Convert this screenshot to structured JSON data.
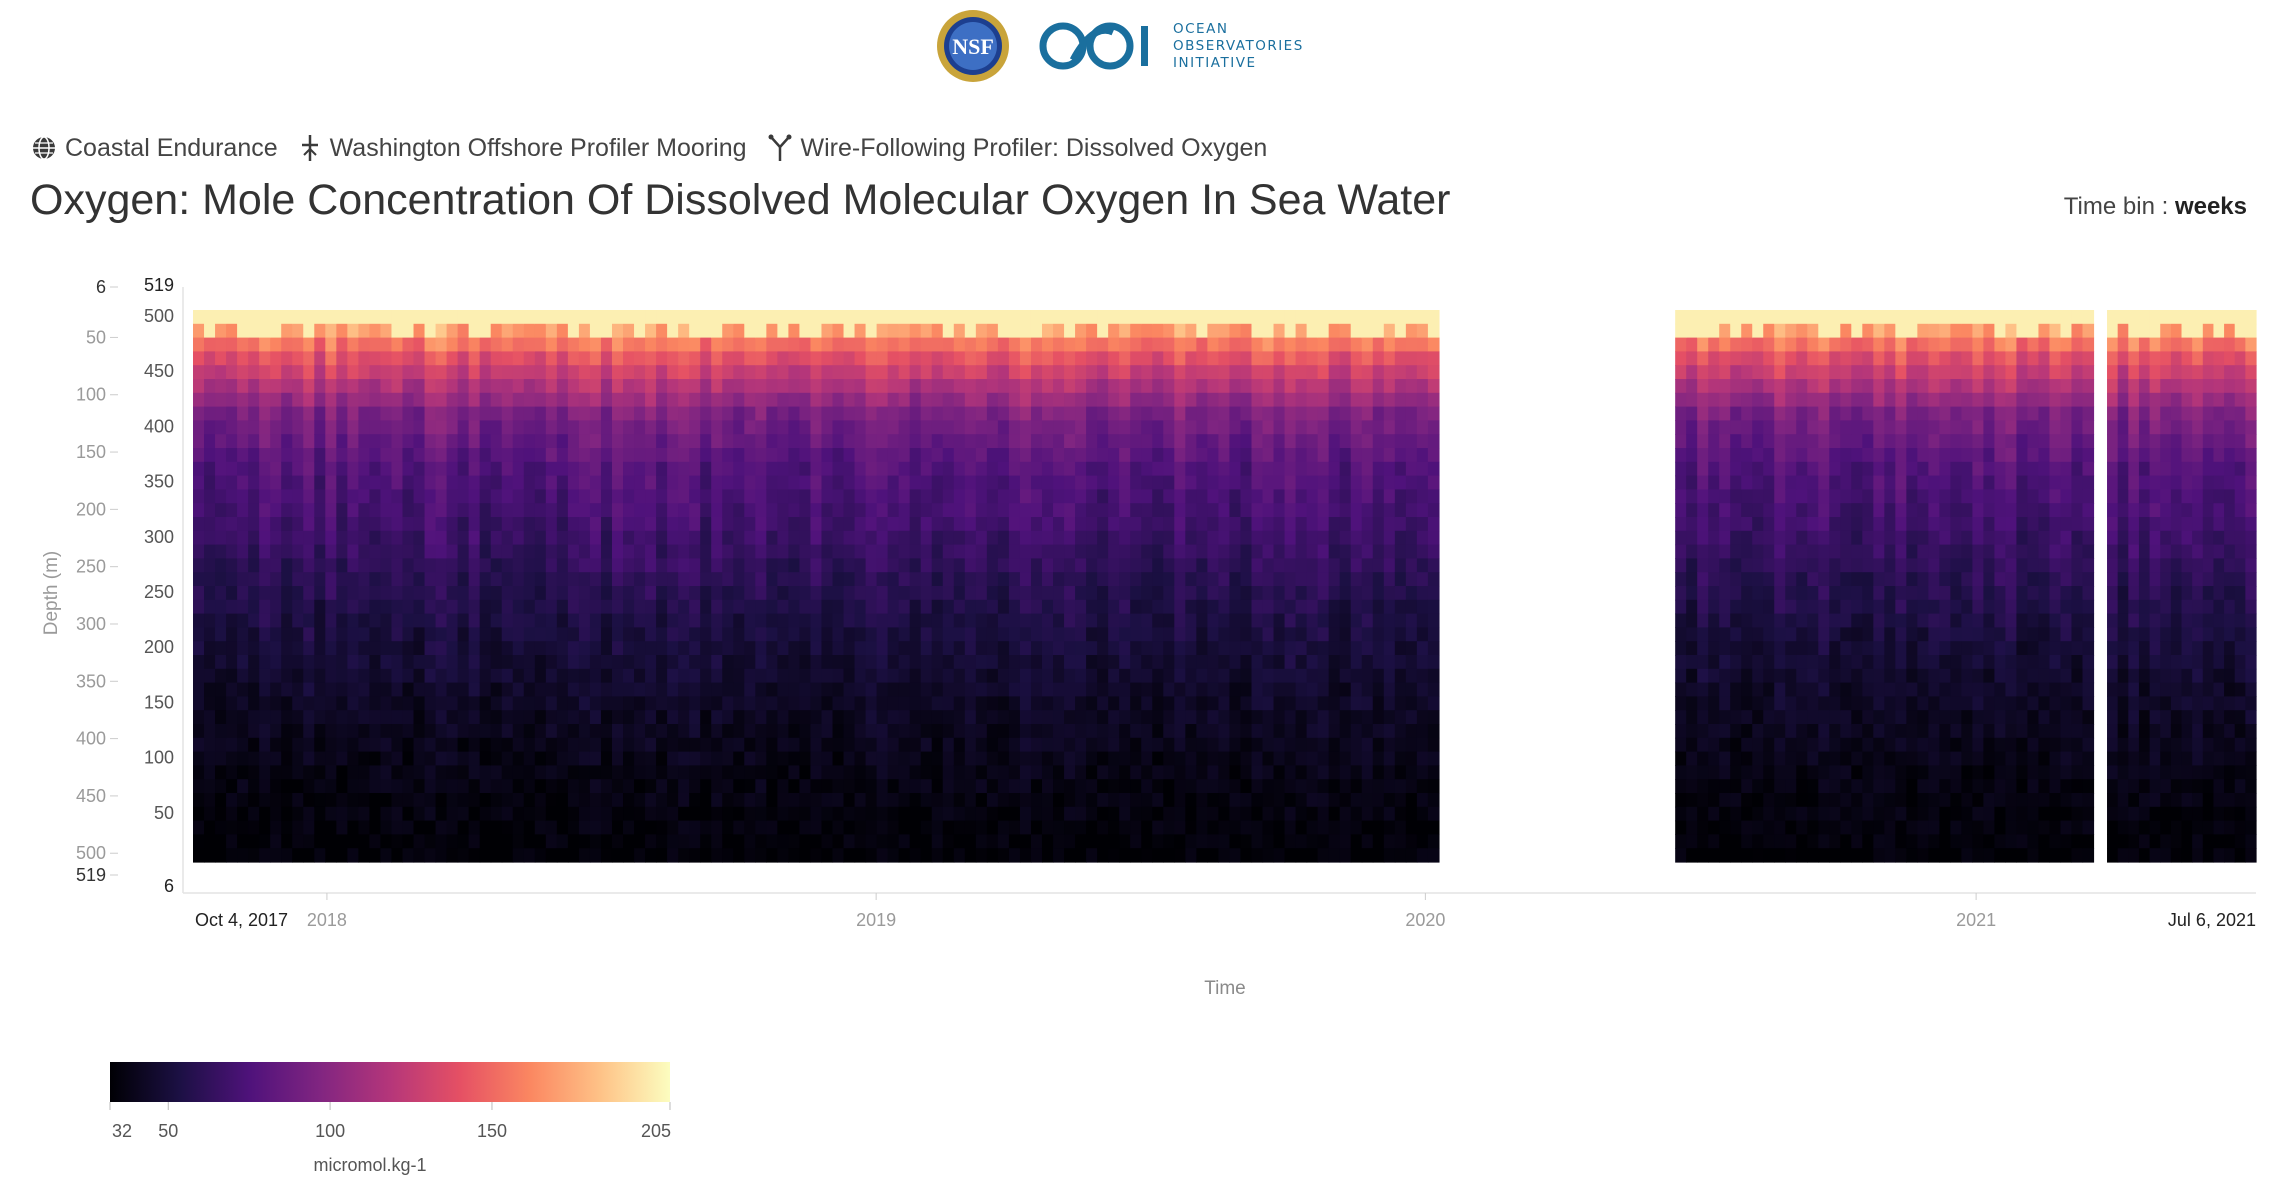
{
  "header": {
    "nsf_logo_text": "NSF",
    "ooi_logo_lines": [
      "OCEAN",
      "OBSERVATORIES",
      "INITIATIVE"
    ]
  },
  "breadcrumb": [
    {
      "icon": "globe-icon",
      "label": "Coastal Endurance"
    },
    {
      "icon": "mooring-icon",
      "label": "Washington Offshore Profiler Mooring"
    },
    {
      "icon": "profiler-icon",
      "label": "Wire-Following Profiler: Dissolved Oxygen"
    }
  ],
  "title": "Oxygen: Mole Concentration Of Dissolved Molecular Oxygen In Sea Water",
  "time_bin": {
    "label": "Time bin :",
    "value": "weeks"
  },
  "colors": {
    "colormap": [
      "#000004",
      "#1c1044",
      "#4f127b",
      "#812581",
      "#b5367a",
      "#e55064",
      "#fb8761",
      "#fec287",
      "#fcfdbf"
    ]
  },
  "chart_data": {
    "type": "heatmap",
    "xlabel": "Time",
    "ylabel": "Depth (m)",
    "x_range": [
      "2017-10-04",
      "2021-07-06"
    ],
    "x_range_labels": [
      "Oct 4, 2017",
      "Jul 6, 2021"
    ],
    "x_ticks": [
      {
        "date": "2018-01-01",
        "label": "2018"
      },
      {
        "date": "2019-01-01",
        "label": "2019"
      },
      {
        "date": "2020-01-01",
        "label": "2020"
      },
      {
        "date": "2021-01-01",
        "label": "2021"
      }
    ],
    "depth_range": [
      6,
      519
    ],
    "depth_ticks_outer": [
      6,
      50,
      100,
      150,
      200,
      250,
      300,
      350,
      400,
      450,
      500,
      519
    ],
    "inner_ticks": [
      519,
      500,
      450,
      400,
      350,
      300,
      250,
      200,
      150,
      100,
      50,
      6
    ],
    "time_bin": "weeks",
    "colorbar": {
      "unit": "micromol.kg-1",
      "range": [
        32,
        205
      ],
      "ticks": [
        32,
        50,
        100,
        150,
        205
      ]
    },
    "data_segments": [
      {
        "start": "2017-10-04",
        "end": "2020-01-10"
      },
      {
        "start": "2020-06-15",
        "end": "2021-03-20"
      },
      {
        "start": "2021-03-29",
        "end": "2021-07-06"
      }
    ],
    "approximate_profile": {
      "description_depth_m": [
        6,
        50,
        100,
        150,
        200,
        250,
        300,
        350,
        400,
        450,
        500
      ],
      "typical_oxygen": [
        195,
        140,
        95,
        78,
        70,
        60,
        52,
        45,
        40,
        36,
        33
      ]
    }
  }
}
